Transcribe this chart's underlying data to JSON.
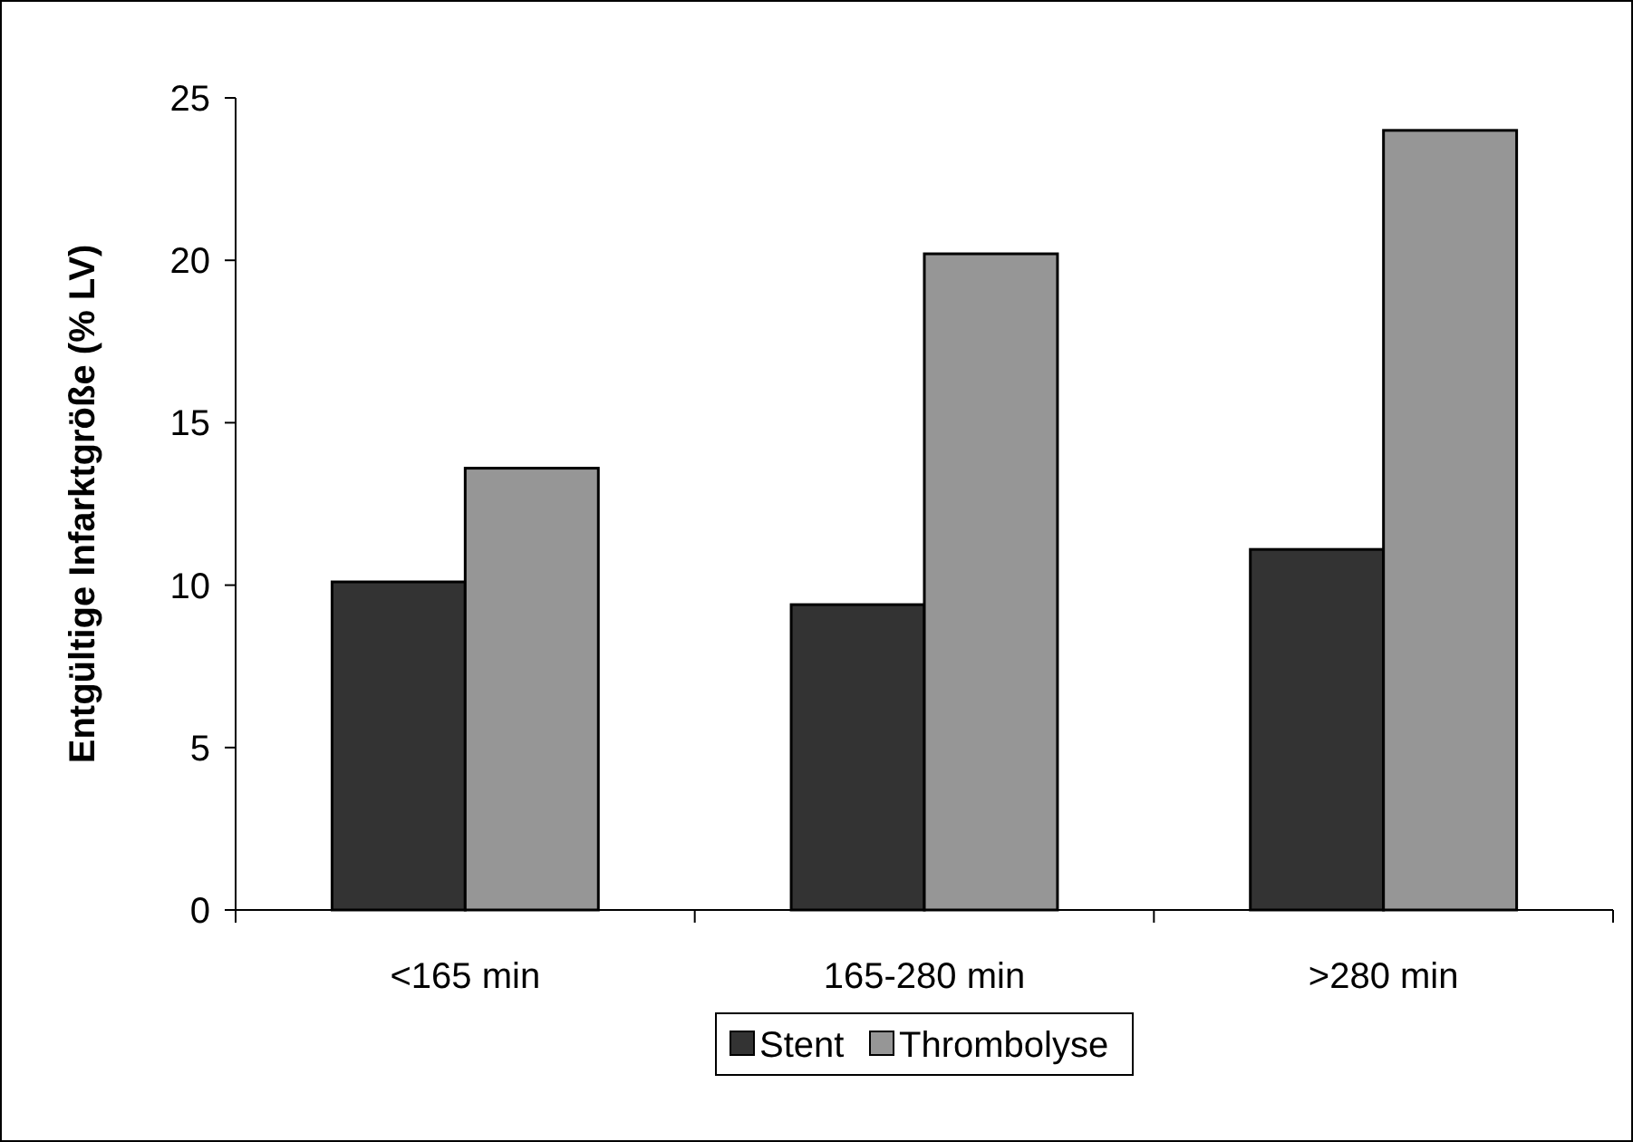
{
  "chart_data": {
    "type": "bar",
    "ylabel": "Entgültige Infarktgröße (% LV)",
    "categories": [
      "<165 min",
      "165-280 min",
      ">280 min"
    ],
    "series": [
      {
        "name": "Stent",
        "color": "#333333",
        "values": [
          10.1,
          9.4,
          11.1
        ]
      },
      {
        "name": "Thrombolyse",
        "color": "#969696",
        "values": [
          13.6,
          20.2,
          24.0
        ]
      }
    ],
    "ylim": [
      0,
      25
    ],
    "yticks": [
      0,
      5,
      10,
      15,
      20,
      25
    ],
    "grid": false,
    "legend": "bottom"
  }
}
